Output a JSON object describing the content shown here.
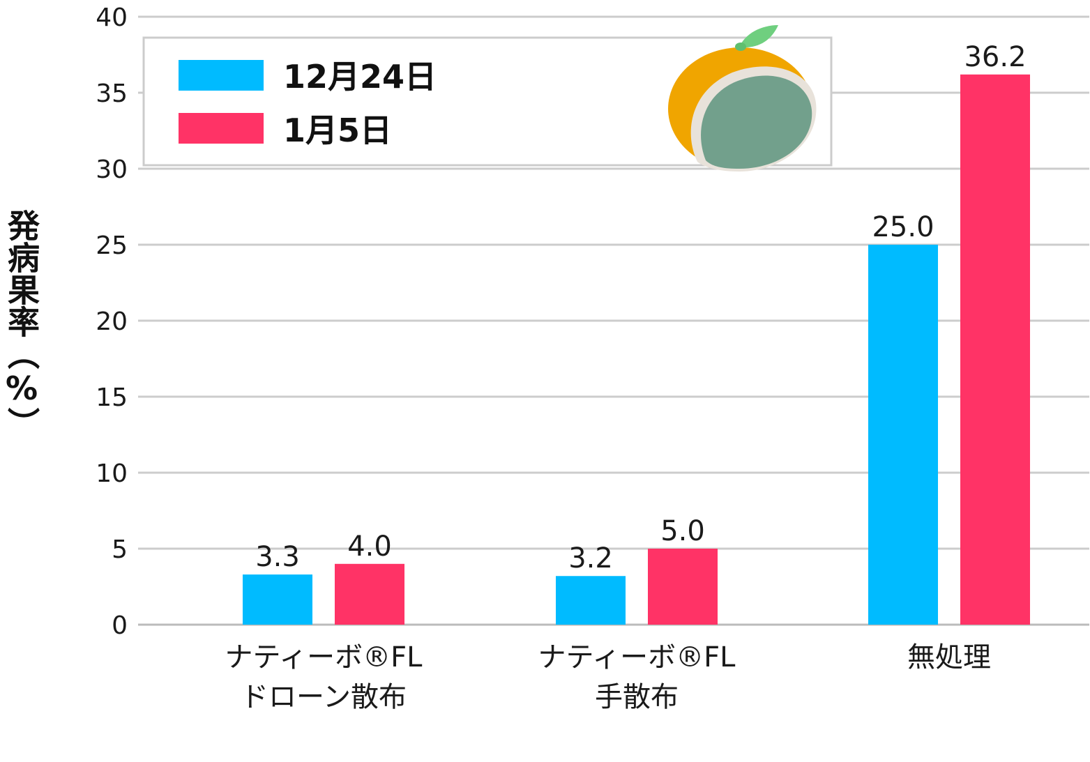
{
  "chart_data": {
    "type": "bar",
    "title": "",
    "xlabel": "",
    "ylabel": "発病果率（%）",
    "ylim": [
      0,
      40
    ],
    "yticks": [
      0,
      5,
      10,
      15,
      20,
      25,
      30,
      35,
      40
    ],
    "grid": true,
    "legend_position": "top-left",
    "categories": [
      [
        "ナティーボ®FL",
        "ドローン散布"
      ],
      [
        "ナティーボ®FL",
        "手散布"
      ],
      [
        "無処理"
      ]
    ],
    "series": [
      {
        "name": "12月24日",
        "color": "#00bbff",
        "values": [
          3.3,
          3.2,
          25.0
        ],
        "labels": [
          "3.3",
          "3.2",
          "25.0"
        ]
      },
      {
        "name": "1月5日",
        "color": "#ff3366",
        "values": [
          4.0,
          5.0,
          36.2
        ],
        "labels": [
          "4.0",
          "5.0",
          "36.2"
        ]
      }
    ]
  },
  "illustration": {
    "name": "mandarin-with-mold",
    "orange": "#f0a500",
    "mold": "#72a08c",
    "leaf": "#6fcf7f",
    "rim": "#e8e2da"
  }
}
